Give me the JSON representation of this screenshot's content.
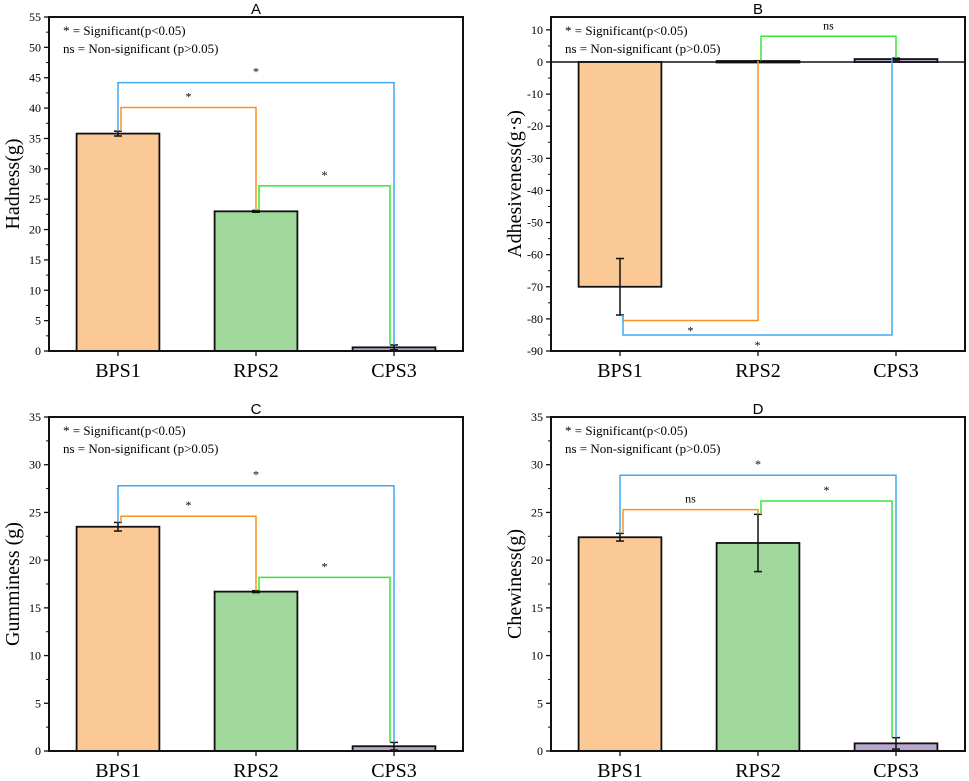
{
  "chart_data": [
    {
      "type": "bar",
      "title": "A",
      "ylabel": "Hadness(g)",
      "xlabel": "",
      "categories": [
        "BPS1",
        "RPS2",
        "CPS3"
      ],
      "values": [
        35.8,
        23.0,
        0.6
      ],
      "errors": [
        0.4,
        0.15,
        0.4
      ],
      "ylim": [
        0,
        55
      ],
      "yticks": [
        0,
        5,
        10,
        15,
        20,
        25,
        30,
        35,
        40,
        45,
        50,
        55
      ],
      "legend_notes": [
        "* = Significant(p<0.05)",
        "ns = Non-significant (p>0.05)"
      ],
      "brackets": [
        {
          "from": "BPS1",
          "to": "CPS3",
          "y": 44.2,
          "label": "*",
          "color": "#3fa9f5"
        },
        {
          "from": "BPS1",
          "to": "RPS2",
          "y": 40.1,
          "label": "*",
          "color": "#f7931e"
        },
        {
          "from": "RPS2",
          "to": "CPS3",
          "y": 27.2,
          "label": "*",
          "color": "#39e639"
        }
      ]
    },
    {
      "type": "bar",
      "title": "B",
      "ylabel": "Adhesiveness(g·s)",
      "xlabel": "",
      "categories": [
        "BPS1",
        "RPS2",
        "CPS3"
      ],
      "values": [
        -70.0,
        0.3,
        0.9
      ],
      "errors": [
        8.8,
        0.1,
        0.3
      ],
      "ylim": [
        -90,
        14
      ],
      "yticks": [
        -90,
        -80,
        -70,
        -60,
        -50,
        -40,
        -30,
        -20,
        -10,
        0,
        10
      ],
      "legend_notes": [
        "* = Significant(p<0.05)",
        "ns = Non-significant (p>0.05)"
      ],
      "brackets": [
        {
          "from": "RPS2",
          "to": "CPS3",
          "y": 8.0,
          "label": "ns",
          "color": "#39e639"
        },
        {
          "from": "BPS1",
          "to": "RPS2",
          "y": -80.5,
          "label": "*",
          "color": "#f7931e"
        },
        {
          "from": "BPS1",
          "to": "CPS3",
          "y": -85.0,
          "label": "*",
          "color": "#3fa9f5"
        }
      ]
    },
    {
      "type": "bar",
      "title": "C",
      "ylabel": "Gumminess (g)",
      "xlabel": "",
      "categories": [
        "BPS1",
        "RPS2",
        "CPS3"
      ],
      "values": [
        23.5,
        16.7,
        0.5
      ],
      "errors": [
        0.45,
        0.1,
        0.4
      ],
      "ylim": [
        0,
        35
      ],
      "yticks": [
        0,
        5,
        10,
        15,
        20,
        25,
        30,
        35
      ],
      "legend_notes": [
        "* = Significant(p<0.05)",
        "ns = Non-significant (p>0.05)"
      ],
      "brackets": [
        {
          "from": "BPS1",
          "to": "CPS3",
          "y": 27.8,
          "label": "*",
          "color": "#3fa9f5"
        },
        {
          "from": "BPS1",
          "to": "RPS2",
          "y": 24.6,
          "label": "*",
          "color": "#f7931e"
        },
        {
          "from": "RPS2",
          "to": "CPS3",
          "y": 18.2,
          "label": "*",
          "color": "#39e639"
        }
      ]
    },
    {
      "type": "bar",
      "title": "D",
      "ylabel": "Chewiness(g)",
      "xlabel": "",
      "categories": [
        "BPS1",
        "RPS2",
        "CPS3"
      ],
      "values": [
        22.4,
        21.8,
        0.8
      ],
      "errors": [
        0.4,
        3.0,
        0.6
      ],
      "ylim": [
        0,
        35
      ],
      "yticks": [
        0,
        5,
        10,
        15,
        20,
        25,
        30,
        35
      ],
      "legend_notes": [
        "* = Significant(p<0.05)",
        "ns = Non-significant (p>0.05)"
      ],
      "brackets": [
        {
          "from": "BPS1",
          "to": "CPS3",
          "y": 28.9,
          "label": "*",
          "color": "#3fa9f5"
        },
        {
          "from": "BPS1",
          "to": "RPS2",
          "y": 25.3,
          "label": "ns",
          "color": "#f7931e"
        },
        {
          "from": "RPS2",
          "to": "CPS3",
          "y": 26.2,
          "label": "*",
          "color": "#39e639"
        }
      ]
    }
  ],
  "bar_colors": [
    "#fbc996",
    "#9fd89a",
    "#b9a6cf"
  ]
}
